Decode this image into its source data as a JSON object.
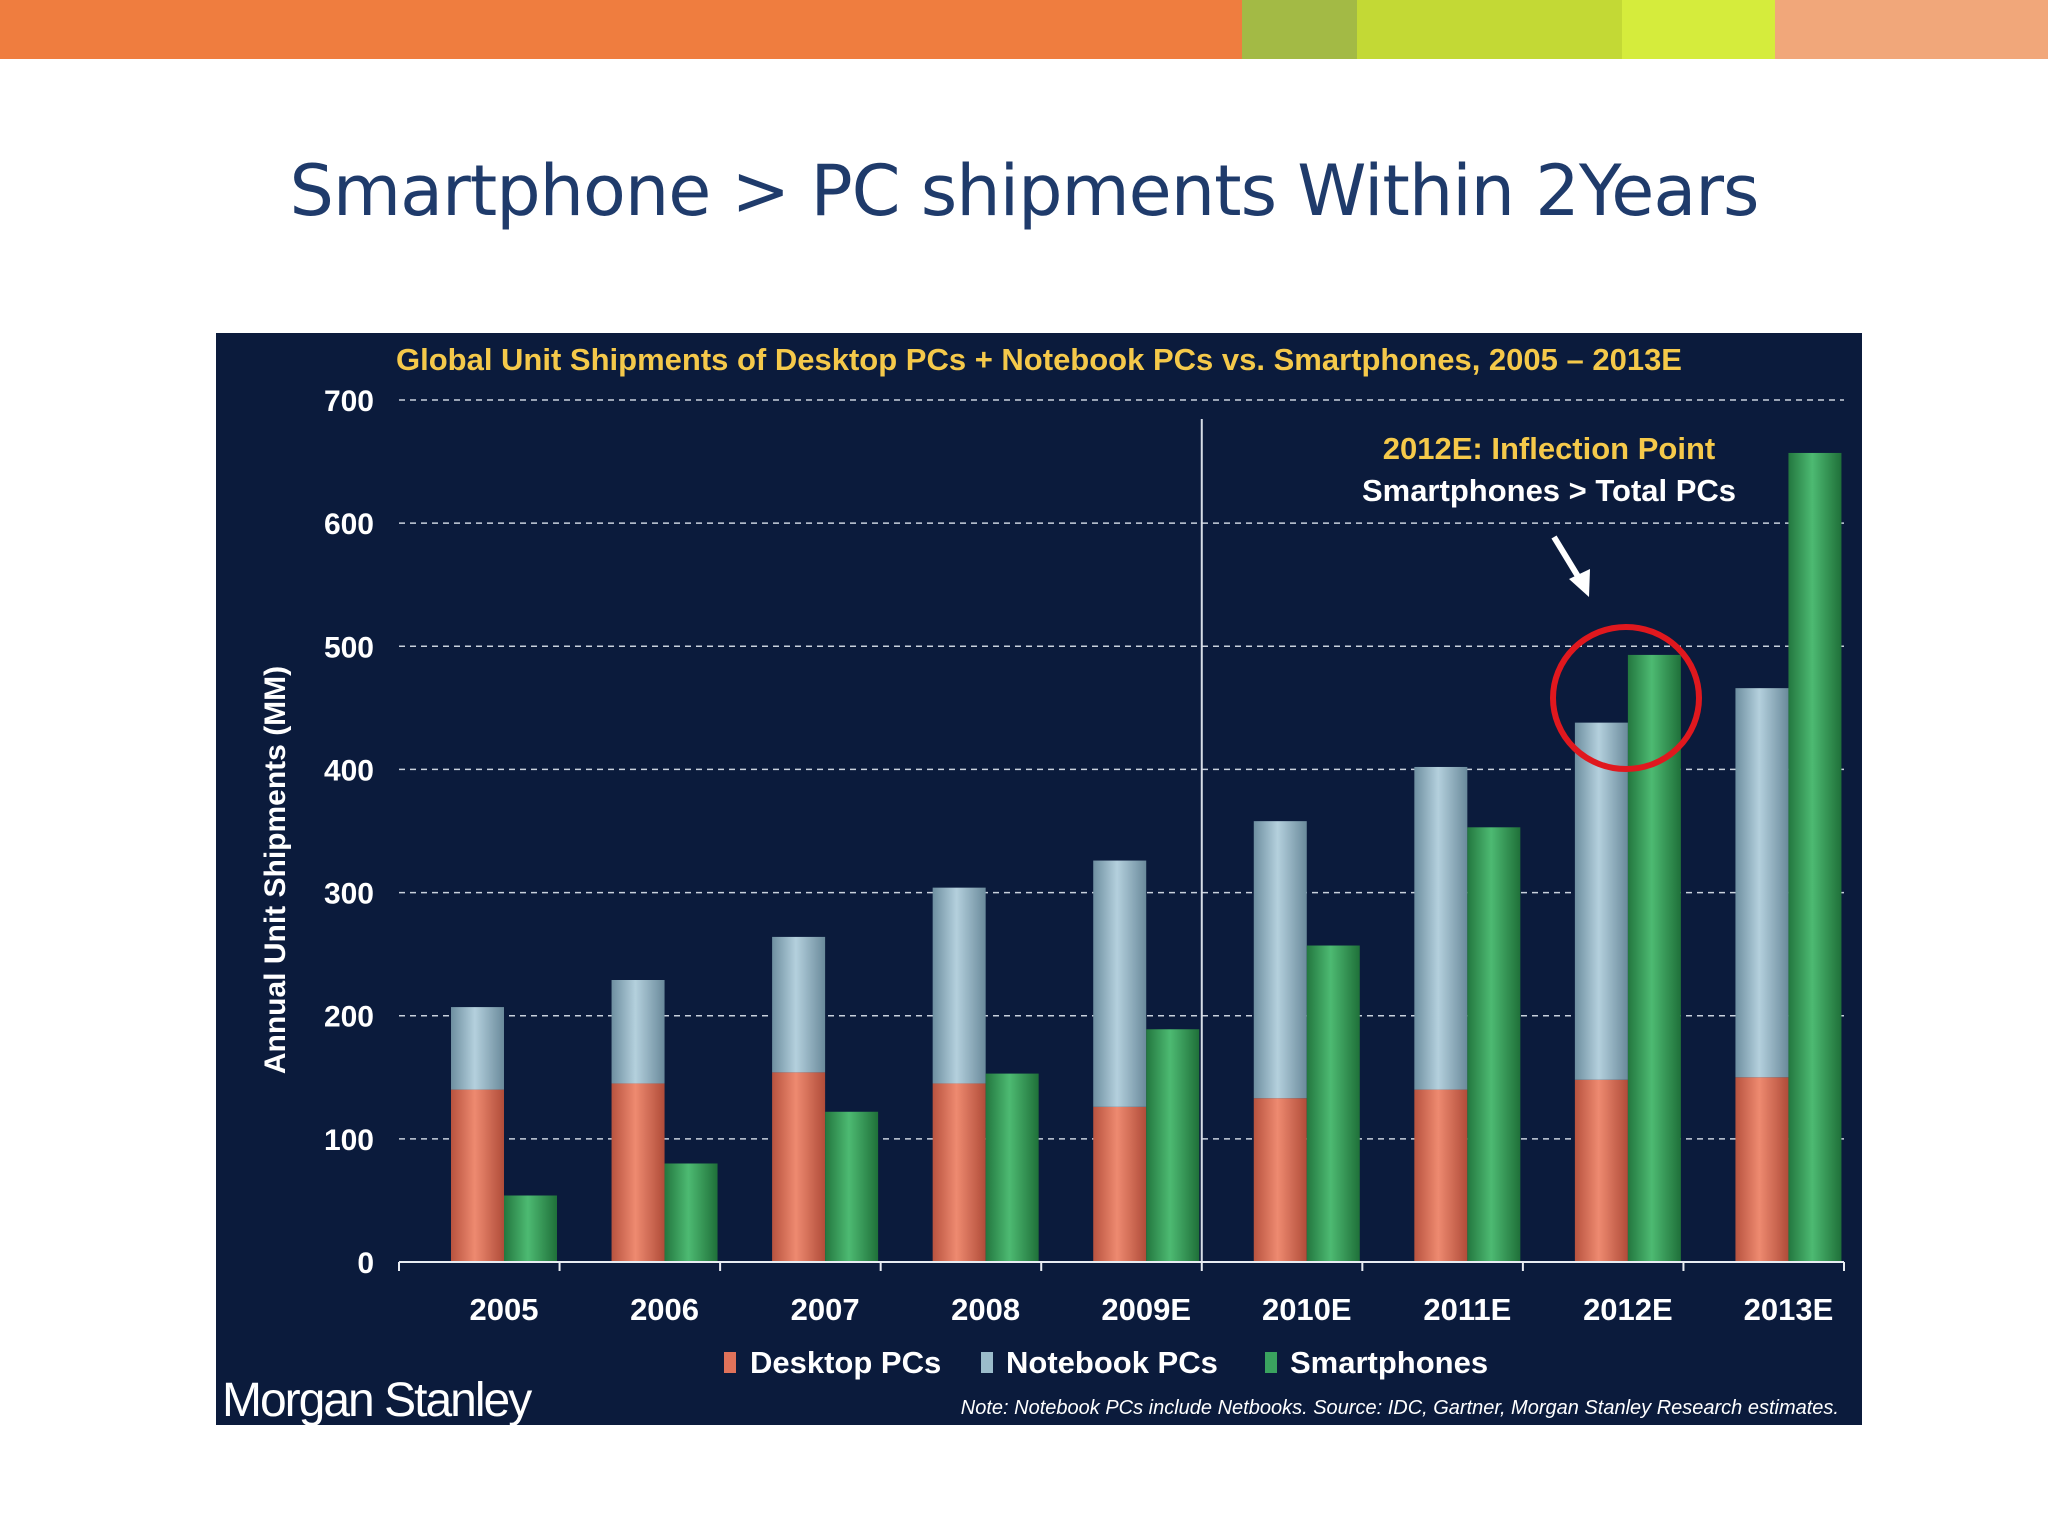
{
  "slide": {
    "title": "Smartphone > PC shipments Within 2Years",
    "top_bar_colors": [
      "#ef7d3f",
      "#a3ba45",
      "#c3d935",
      "#d5ec3c",
      "#f1a77a"
    ]
  },
  "brand": {
    "logo_text": "Morgan Stanley"
  },
  "chart_data": {
    "type": "bar",
    "title": "Global Unit Shipments of Desktop PCs + Notebook PCs vs. Smartphones, 2005 – 2013E",
    "ylabel": "Annual Unit Shipments (MM)",
    "xlabel": "",
    "ylim": [
      0,
      700
    ],
    "yticks": [
      "0",
      "100",
      "200",
      "300",
      "400",
      "500",
      "600",
      "700"
    ],
    "grid": true,
    "categories": [
      "2005",
      "2006",
      "2007",
      "2008",
      "2009E",
      "2010E",
      "2011E",
      "2012E",
      "2013E"
    ],
    "series": [
      {
        "name": "Desktop PCs",
        "stack": "PCs",
        "color": "#e0725a",
        "values": [
          140,
          145,
          154,
          145,
          126,
          133,
          140,
          148,
          150
        ]
      },
      {
        "name": "Notebook PCs",
        "stack": "PCs",
        "color": "#9bbccb",
        "values": [
          67,
          84,
          110,
          159,
          200,
          225,
          262,
          290,
          316
        ]
      },
      {
        "name": "Smartphones",
        "stack": "Smartphones",
        "color": "#3aa35f",
        "values": [
          54,
          80,
          122,
          153,
          189,
          257,
          353,
          493,
          657
        ]
      }
    ],
    "legend_position": "bottom-center",
    "annotation": {
      "title": "2012E: Inflection Point",
      "subtitle": "Smartphones > Total PCs",
      "category": "2012E",
      "title_color": "#f5c94a",
      "circle_color": "#e0181e"
    },
    "divider_after_category": "2009E",
    "note": "Note: Notebook PCs include Netbooks. Source: IDC, Gartner, Morgan Stanley Research estimates.",
    "colors": {
      "background": "#0b1b3c",
      "title": "#f5c94a",
      "text": "#ffffff",
      "grid": "#c9d1dd"
    }
  }
}
